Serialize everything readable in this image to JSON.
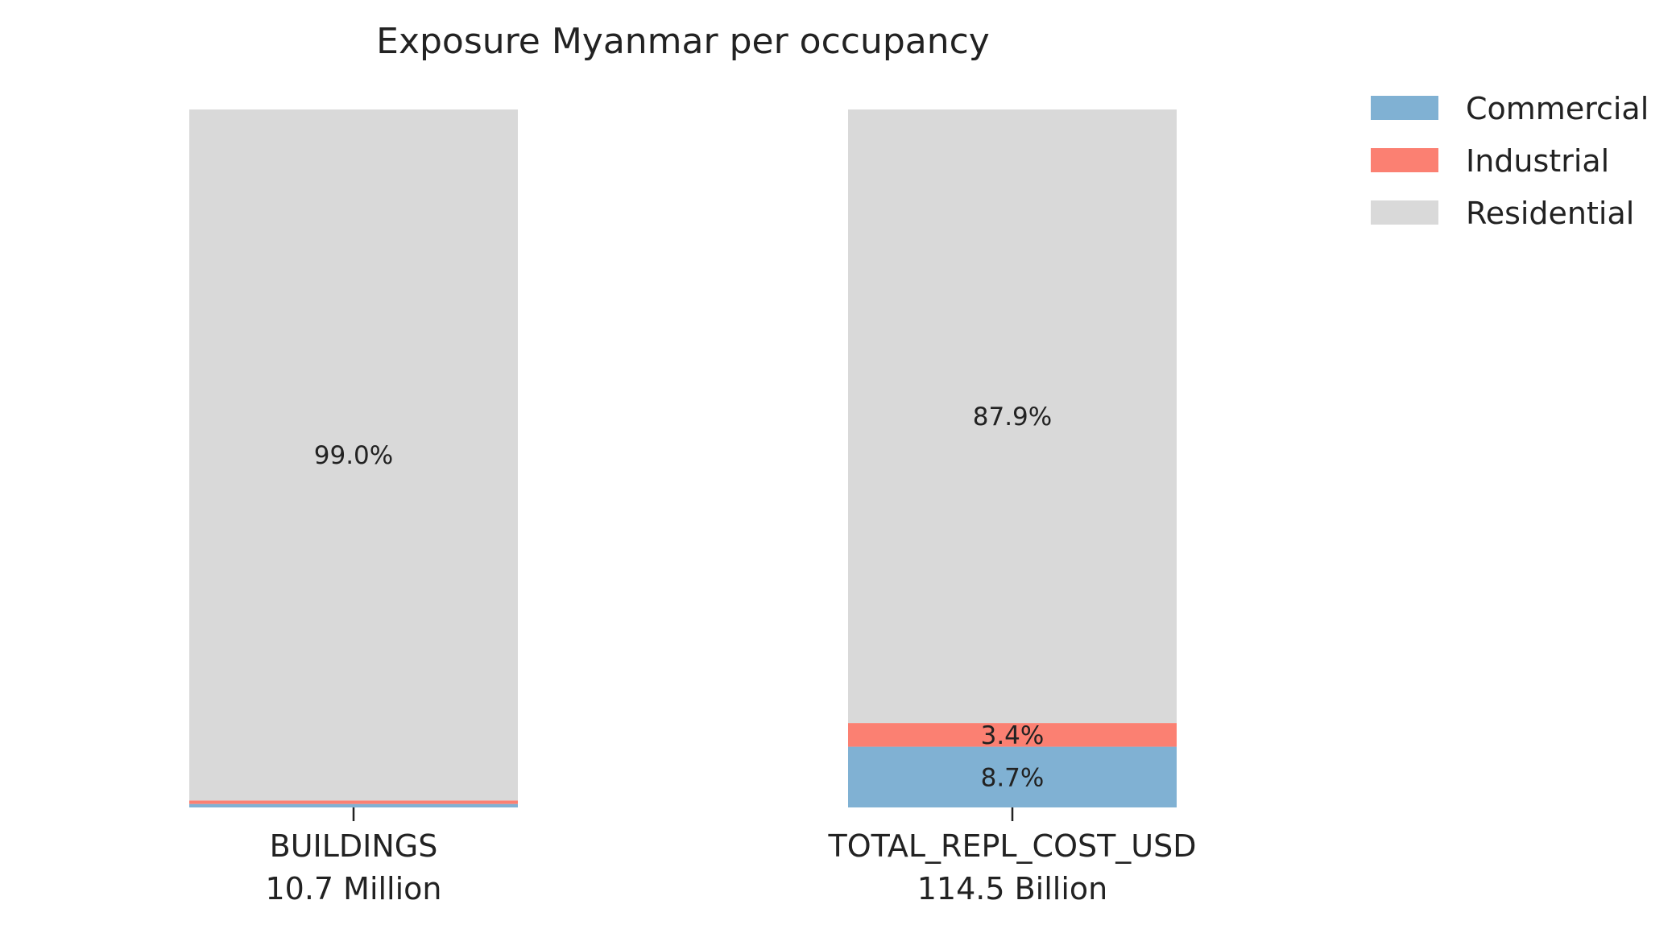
{
  "chart_data": {
    "type": "bar",
    "stacked": true,
    "normalized_percent": true,
    "title": "Exposure Myanmar per occupancy",
    "categories": [
      "BUILDINGS",
      "TOTAL_REPL_COST_USD"
    ],
    "category_totals": [
      "10.7 Million",
      "114.5 Billion"
    ],
    "series": [
      {
        "name": "Commercial",
        "color": "#80b1d3",
        "values": [
          0.5,
          8.7
        ],
        "labels": [
          "",
          "8.7%"
        ]
      },
      {
        "name": "Industrial",
        "color": "#fb8072",
        "values": [
          0.5,
          3.4
        ],
        "labels": [
          "",
          "3.4%"
        ]
      },
      {
        "name": "Residential",
        "color": "#d9d9d9",
        "values": [
          99.0,
          87.9
        ],
        "labels": [
          "99.0%",
          "87.9%"
        ]
      }
    ],
    "ylim": [
      0,
      100
    ],
    "grid": false,
    "legend": "top-right"
  }
}
